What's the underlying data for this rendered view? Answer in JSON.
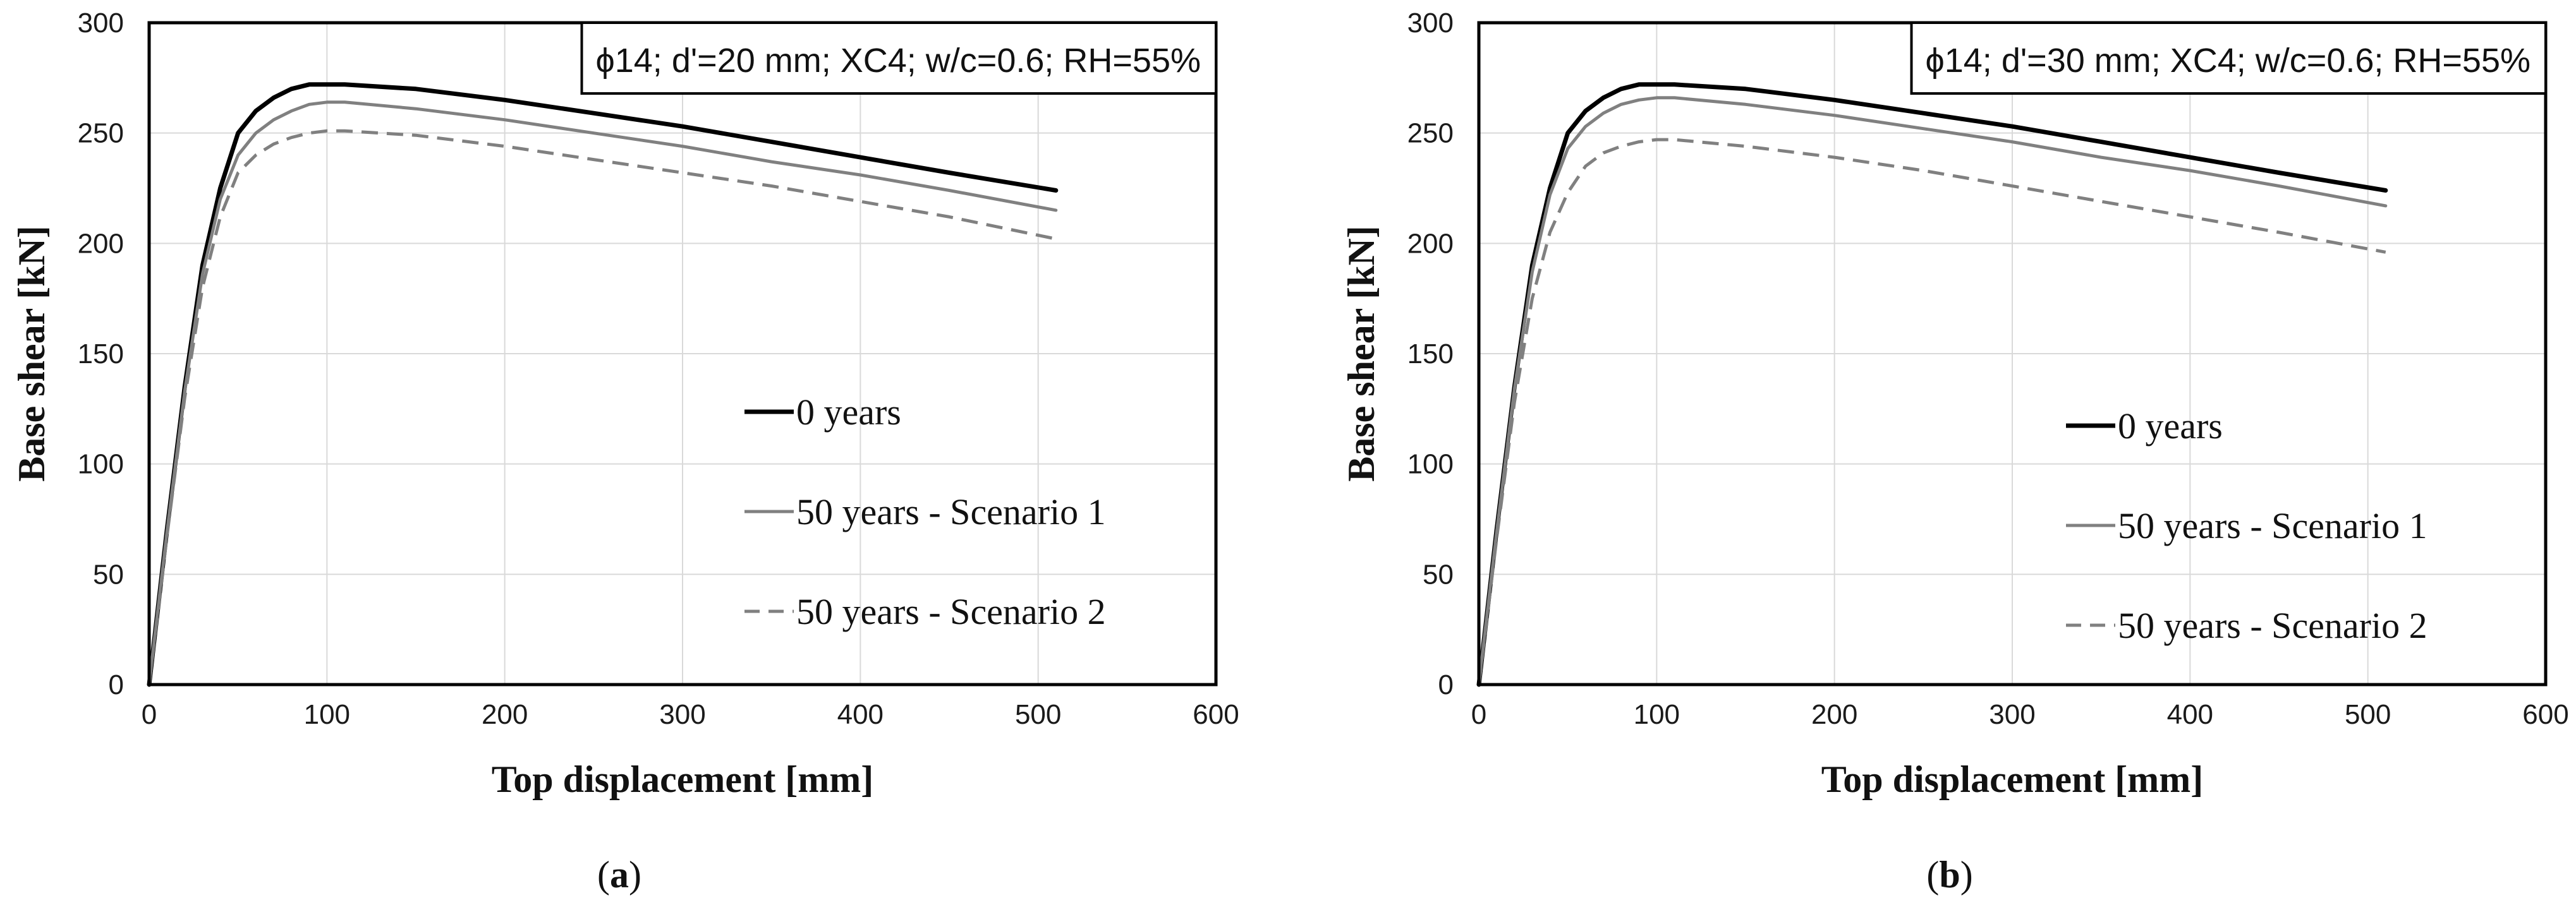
{
  "chart_data": [
    {
      "type": "line",
      "panel_label": "a",
      "annotation": "ϕ14; d'=20 mm; XC4; w/c=0.6; RH=55%",
      "xlabel": "Top displacement [mm]",
      "ylabel": "Base shear [kN]",
      "xlim": [
        0,
        600
      ],
      "ylim": [
        0,
        300
      ],
      "x_ticks": [
        0,
        100,
        200,
        300,
        400,
        500,
        600
      ],
      "y_ticks": [
        0,
        50,
        100,
        150,
        200,
        250,
        300
      ],
      "grid": true,
      "legend_position": "center-right",
      "series": [
        {
          "name": "0 years",
          "style": "solid",
          "color": "#000000",
          "x": [
            0,
            10,
            20,
            30,
            40,
            50,
            60,
            70,
            80,
            90,
            100,
            110,
            150,
            200,
            250,
            300,
            350,
            400,
            450,
            510
          ],
          "y": [
            0,
            70,
            135,
            190,
            225,
            250,
            260,
            266,
            270,
            272,
            272,
            272,
            270,
            265,
            259,
            253,
            246,
            239,
            232,
            224
          ]
        },
        {
          "name": "50 years - Scenario 1",
          "style": "solid",
          "color": "#808080",
          "x": [
            0,
            10,
            20,
            30,
            40,
            50,
            60,
            70,
            80,
            90,
            100,
            110,
            150,
            200,
            250,
            300,
            350,
            400,
            450,
            510
          ],
          "y": [
            0,
            69,
            133,
            186,
            220,
            240,
            250,
            256,
            260,
            263,
            264,
            264,
            261,
            256,
            250,
            244,
            237,
            231,
            224,
            215
          ]
        },
        {
          "name": "50 years - Scenario 2",
          "style": "dashed",
          "color": "#808080",
          "x": [
            0,
            10,
            20,
            30,
            40,
            50,
            60,
            70,
            80,
            90,
            100,
            110,
            150,
            200,
            250,
            300,
            350,
            400,
            450,
            510
          ],
          "y": [
            0,
            67,
            130,
            180,
            212,
            232,
            240,
            245,
            248,
            250,
            251,
            251,
            249,
            244,
            238,
            232,
            226,
            219,
            212,
            202
          ]
        }
      ]
    },
    {
      "type": "line",
      "panel_label": "b",
      "annotation": "ϕ14; d'=30 mm; XC4; w/c=0.6; RH=55%",
      "xlabel": "Top displacement [mm]",
      "ylabel": "Base shear [kN]",
      "xlim": [
        0,
        600
      ],
      "ylim": [
        0,
        300
      ],
      "x_ticks": [
        0,
        100,
        200,
        300,
        400,
        500,
        600
      ],
      "y_ticks": [
        0,
        50,
        100,
        150,
        200,
        250,
        300
      ],
      "grid": true,
      "legend_position": "center-right",
      "series": [
        {
          "name": "0 years",
          "style": "solid",
          "color": "#000000",
          "x": [
            0,
            10,
            20,
            30,
            40,
            50,
            60,
            70,
            80,
            90,
            100,
            110,
            150,
            200,
            250,
            300,
            350,
            400,
            450,
            510
          ],
          "y": [
            0,
            70,
            135,
            190,
            225,
            250,
            260,
            266,
            270,
            272,
            272,
            272,
            270,
            265,
            259,
            253,
            246,
            239,
            232,
            224
          ]
        },
        {
          "name": "50 years - Scenario 1",
          "style": "solid",
          "color": "#808080",
          "x": [
            0,
            10,
            20,
            30,
            40,
            50,
            60,
            70,
            80,
            90,
            100,
            110,
            150,
            200,
            250,
            300,
            350,
            400,
            450,
            510
          ],
          "y": [
            0,
            69,
            134,
            187,
            222,
            243,
            253,
            259,
            263,
            265,
            266,
            266,
            263,
            258,
            252,
            246,
            239,
            233,
            226,
            217
          ]
        },
        {
          "name": "50 years - Scenario 2",
          "style": "dashed",
          "color": "#808080",
          "x": [
            0,
            10,
            20,
            30,
            40,
            50,
            60,
            70,
            80,
            90,
            100,
            110,
            150,
            200,
            250,
            300,
            350,
            400,
            450,
            510
          ],
          "y": [
            0,
            66,
            128,
            175,
            205,
            223,
            235,
            241,
            244,
            246,
            247,
            247,
            244,
            239,
            233,
            226,
            219,
            212,
            205,
            196
          ]
        }
      ]
    }
  ]
}
